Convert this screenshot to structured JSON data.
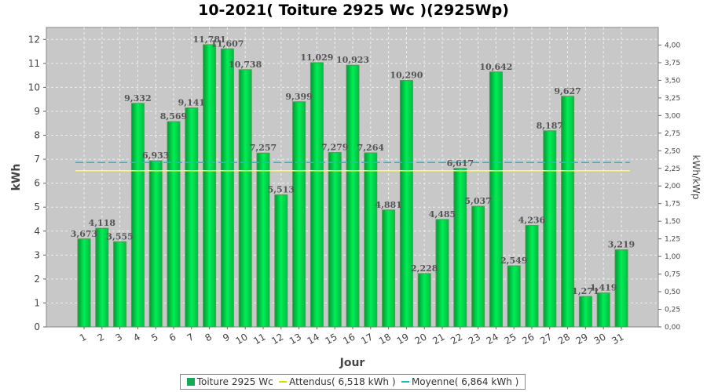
{
  "title": "10-2021( Toiture 2925 Wc )(2925Wp)",
  "colors": {
    "bar": "#00ee55",
    "expected": "#ffff55",
    "average": "#22bbcc",
    "plot_bg": "#c8c8c8"
  },
  "legend": {
    "bars": "Toiture 2925 Wc",
    "expected": "Attendus( 6,518 kWh )",
    "average": "Moyenne( 6,864 kWh )"
  },
  "chart_data": {
    "type": "bar",
    "title": "10-2021( Toiture 2925 Wc )(2925Wp)",
    "xlabel": "Jour",
    "ylabel": "kWh",
    "y2label": "kWh/kWp",
    "ylim": [
      0,
      12.5
    ],
    "y2lim": [
      0,
      4.25
    ],
    "yticks": [
      "0",
      "1",
      "2",
      "3",
      "4",
      "5",
      "6",
      "7",
      "8",
      "9",
      "10",
      "11",
      "12"
    ],
    "y2ticks": [
      "0,00",
      "0,25",
      "0,50",
      "0,75",
      "1,00",
      "1,25",
      "1,50",
      "1,75",
      "2,00",
      "2,25",
      "2,50",
      "2,75",
      "3,00",
      "3,25",
      "3,50",
      "3,75",
      "4,00"
    ],
    "categories": [
      "1",
      "2",
      "3",
      "4",
      "5",
      "6",
      "7",
      "8",
      "9",
      "10",
      "11",
      "12",
      "13",
      "14",
      "15",
      "16",
      "17",
      "18",
      "19",
      "20",
      "21",
      "22",
      "23",
      "24",
      "25",
      "26",
      "27",
      "28",
      "29",
      "30",
      "31"
    ],
    "values": [
      3.673,
      4.118,
      3.555,
      9.332,
      6.933,
      8.569,
      9.141,
      11.781,
      11.607,
      10.738,
      7.257,
      5.513,
      9.399,
      11.029,
      7.279,
      10.923,
      7.264,
      4.881,
      10.29,
      2.228,
      4.485,
      6.617,
      5.037,
      10.642,
      2.549,
      4.236,
      8.187,
      9.627,
      1.271,
      1.419,
      3.219
    ],
    "value_labels": [
      "3,673",
      "4,118",
      "3,555",
      "9,332",
      "6,933",
      "8,569",
      "9,141",
      "11,781",
      "11,607",
      "10,738",
      "7,257",
      "5,513",
      "9,399",
      "11,029",
      "7,279",
      "10,923",
      "7,264",
      "4,881",
      "10,290",
      "2,228",
      "4,485",
      "6,617",
      "5,037",
      "10,642",
      "2,549",
      "4,236",
      "8,187",
      "9,627",
      "1,271",
      "1,419",
      "3,219"
    ],
    "expected": 6.518,
    "average": 6.864,
    "grid": true,
    "legend_position": "bottom"
  }
}
